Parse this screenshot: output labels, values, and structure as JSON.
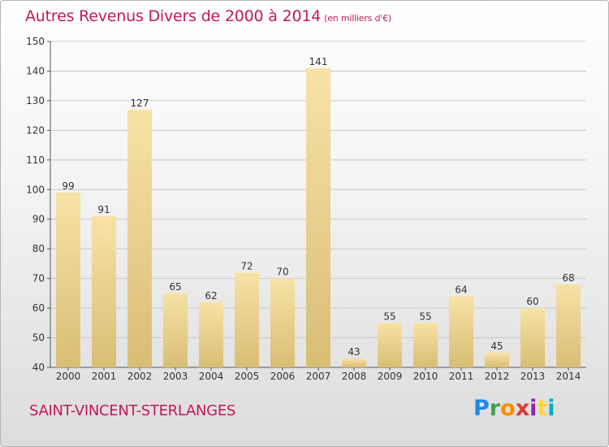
{
  "header": {
    "title": "Autres Revenus Divers de 2000 à 2014",
    "subtitle": "(en milliers d'€)"
  },
  "footer": {
    "commune": "SAINT-VINCENT-STERLANGES",
    "logo_text": "Proxiti",
    "logo_colors": [
      "#1e88e5",
      "#43a047",
      "#fb8c00",
      "#e53935",
      "#8e24aa",
      "#fdd835",
      "#00acc1"
    ]
  },
  "colors": {
    "title": "#c2185b",
    "bar_light": "#f7e2a6",
    "bar_dark": "#d9bd74",
    "grid": "#c8c8c8"
  },
  "chart_data": {
    "type": "bar",
    "categories": [
      "2000",
      "2001",
      "2002",
      "2003",
      "2004",
      "2005",
      "2006",
      "2007",
      "2008",
      "2009",
      "2010",
      "2011",
      "2012",
      "2013",
      "2014"
    ],
    "values": [
      99,
      91,
      127,
      65,
      62,
      72,
      70,
      141,
      43,
      55,
      55,
      64,
      45,
      60,
      68
    ],
    "ylim": [
      40,
      150
    ],
    "yticks": [
      40,
      50,
      60,
      70,
      80,
      90,
      100,
      110,
      120,
      130,
      140,
      150
    ],
    "grid": true,
    "data_labels": true
  }
}
